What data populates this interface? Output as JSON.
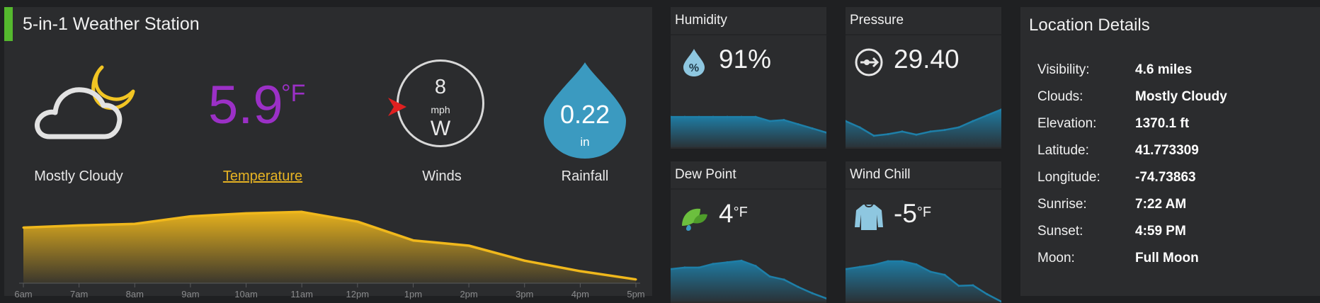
{
  "colors": {
    "accent_green": "#55b82e",
    "temperature_purple": "#9b30c6",
    "chart_yellow": "#f0b81c",
    "rain_blue": "#3b9ac0",
    "mini_chart_blue": "#1e7fa8",
    "wind_arrow_red": "#e02020",
    "moon_yellow": "#f2c523"
  },
  "station": {
    "title": "5-in-1 Weather Station",
    "condition": {
      "icon": "cloud-moon-icon",
      "label": "Mostly Cloudy"
    },
    "temperature": {
      "value": "5.9",
      "unit": "°F",
      "label": "Temperature"
    },
    "wind": {
      "speed": "8",
      "unit": "mph",
      "direction": "W",
      "label": "Winds"
    },
    "rainfall": {
      "value": "0.22",
      "unit": "in",
      "label": "Rainfall"
    }
  },
  "tiles": {
    "humidity": {
      "title": "Humidity",
      "icon": "humidity-drop-icon",
      "value": "91%"
    },
    "pressure": {
      "title": "Pressure",
      "icon": "pressure-gauge-icon",
      "value": "29.40"
    },
    "dew_point": {
      "title": "Dew Point",
      "icon": "leaf-dew-icon",
      "value": "4",
      "unit": "°F"
    },
    "wind_chill": {
      "title": "Wind Chill",
      "icon": "sweater-icon",
      "value": "-5",
      "unit": "°F"
    }
  },
  "location": {
    "title": "Location Details",
    "rows": [
      {
        "key": "Visibility:",
        "value": "4.6 miles"
      },
      {
        "key": "Clouds:",
        "value": "Mostly Cloudy"
      },
      {
        "key": "Elevation:",
        "value": "1370.1 ft"
      },
      {
        "key": "Latitude:",
        "value": "41.773309"
      },
      {
        "key": "Longitude:",
        "value": "-74.73863"
      },
      {
        "key": "Sunrise:",
        "value": "7:22 AM"
      },
      {
        "key": "Sunset:",
        "value": "4:59 PM"
      },
      {
        "key": "Moon:",
        "value": "Full Moon"
      }
    ]
  },
  "chart_data": [
    {
      "type": "area",
      "categories": [
        "6am",
        "7am",
        "8am",
        "9am",
        "10am",
        "11am",
        "12pm",
        "1pm",
        "2pm",
        "3pm",
        "4pm",
        "5pm"
      ],
      "values": [
        0.74,
        0.77,
        0.79,
        0.89,
        0.93,
        0.95,
        0.82,
        0.57,
        0.5,
        0.3,
        0.16,
        0.05
      ],
      "ylim": [
        0,
        1
      ],
      "color": "#f0b81c"
    },
    {
      "type": "area",
      "values": [
        0.58,
        0.58,
        0.58,
        0.58,
        0.58,
        0.58,
        0.58,
        0.5,
        0.52,
        0.44,
        0.36,
        0.28
      ],
      "ylim": [
        0,
        1
      ],
      "color": "#1e7fa8"
    },
    {
      "type": "area",
      "values": [
        0.5,
        0.38,
        0.22,
        0.25,
        0.3,
        0.24,
        0.3,
        0.33,
        0.38,
        0.5,
        0.61,
        0.72
      ],
      "ylim": [
        0,
        1
      ],
      "color": "#1e7fa8"
    },
    {
      "type": "area",
      "values": [
        0.62,
        0.65,
        0.65,
        0.72,
        0.75,
        0.78,
        0.68,
        0.48,
        0.42,
        0.28,
        0.16,
        0.06
      ],
      "ylim": [
        0,
        1
      ],
      "color": "#1e7fa8"
    },
    {
      "type": "area",
      "values": [
        0.62,
        0.66,
        0.7,
        0.77,
        0.77,
        0.71,
        0.57,
        0.51,
        0.3,
        0.31,
        0.14,
        0.0
      ],
      "ylim": [
        0,
        1
      ],
      "color": "#1e7fa8"
    }
  ]
}
